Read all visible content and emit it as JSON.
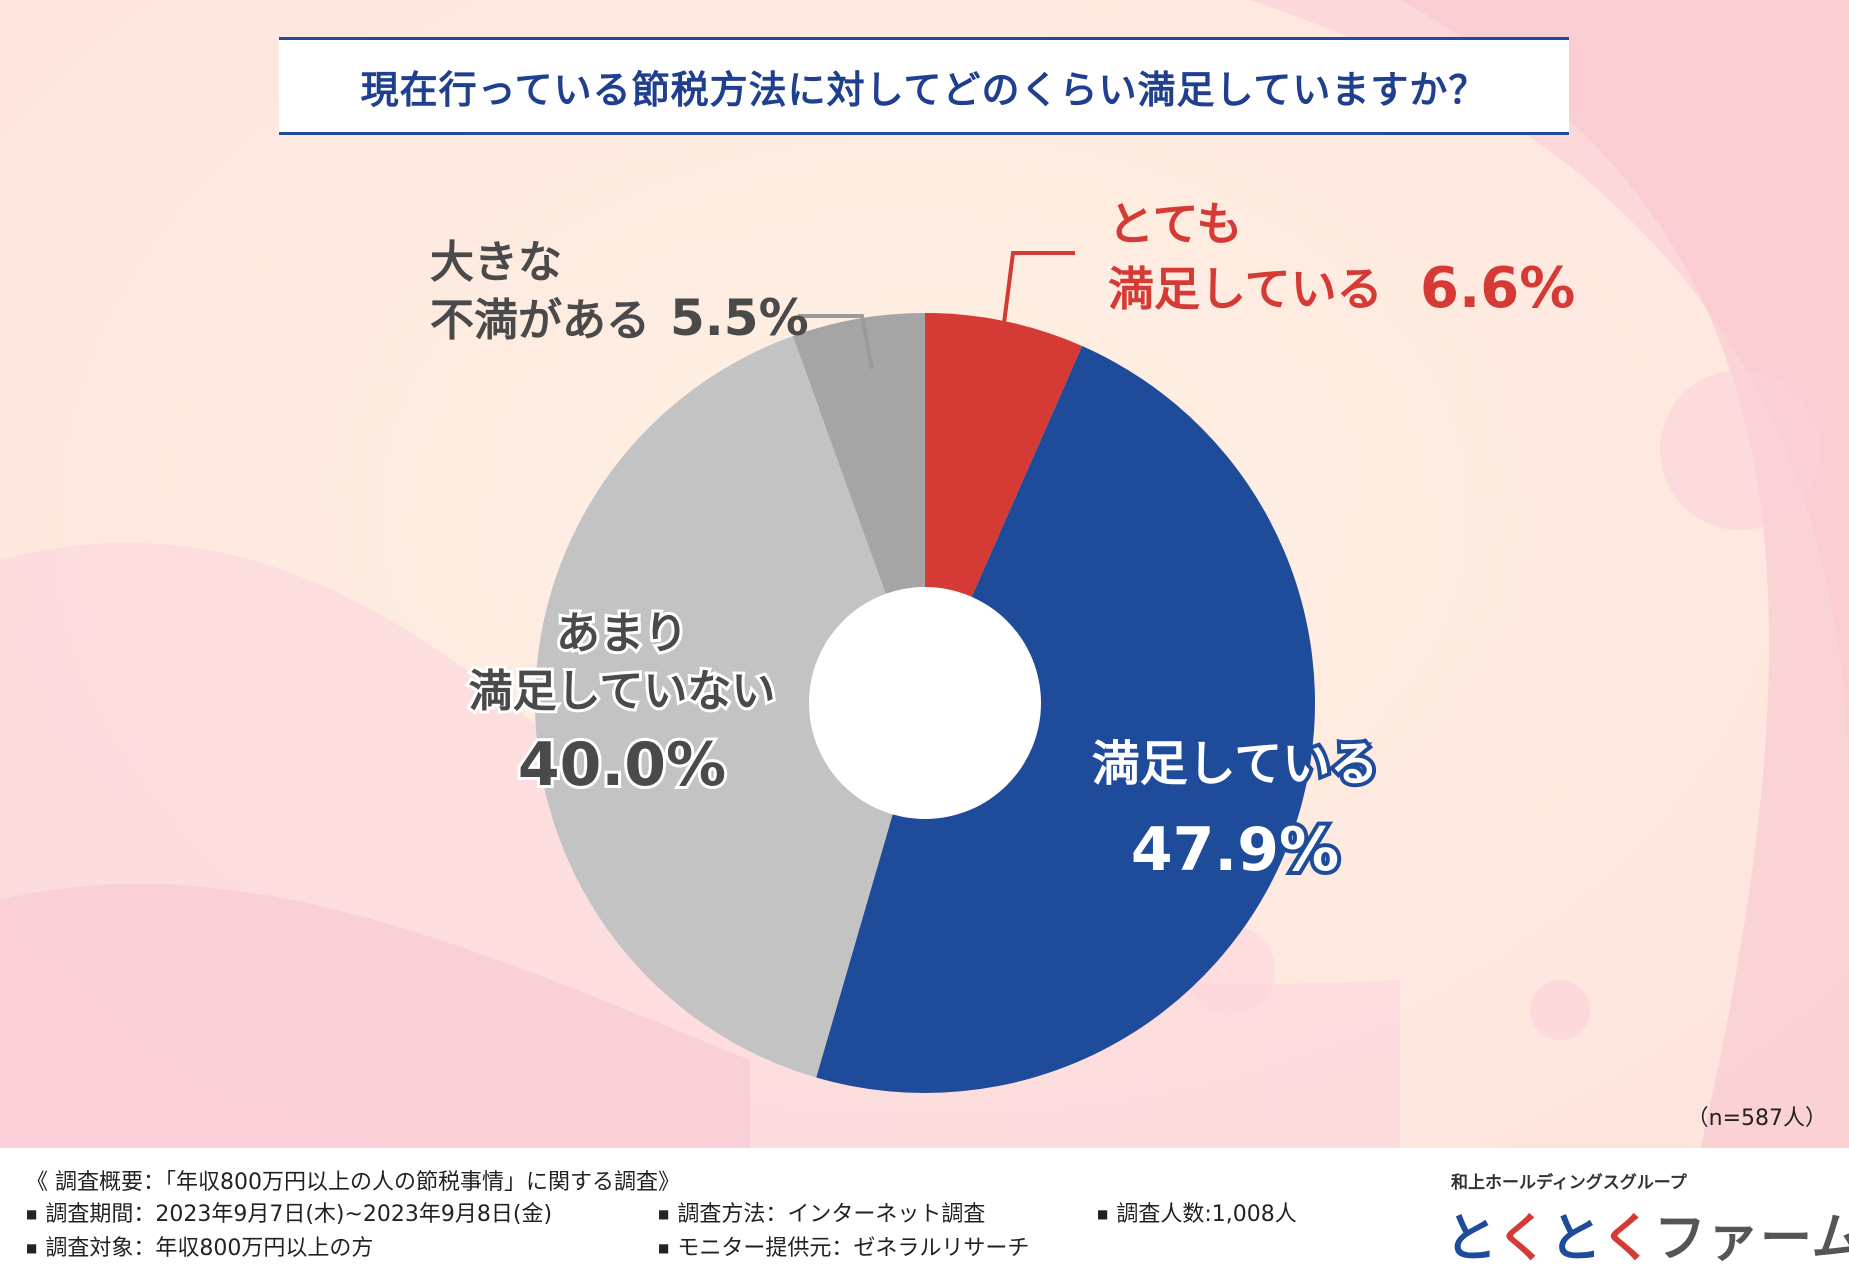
{
  "title": "現在行っている節税方法に対してどのくらい満足していますか？",
  "sample_note": "（n=587人）",
  "colors": {
    "very_satisfied": "#d63a34",
    "satisfied": "#1f4b9b",
    "not_very_satisfied": "#c3c3c3",
    "very_dissatisfied": "#a5a5a5",
    "title_text": "#1f3f8f"
  },
  "chart_data": {
    "type": "pie",
    "title": "現在行っている節税方法に対してどのくらい満足していますか？",
    "donut": true,
    "start_angle": "12 o'clock, clockwise",
    "slices": [
      {
        "name": "とても満足している",
        "value": 6.6,
        "color": "#d63a34",
        "label_lines": [
          "とても",
          "満足している"
        ],
        "value_text": "6.6%"
      },
      {
        "name": "満足している",
        "value": 47.9,
        "color": "#1f4b9b",
        "label_lines": [
          "満足している"
        ],
        "value_text": "47.9%"
      },
      {
        "name": "あまり満足していない",
        "value": 40.0,
        "color": "#c3c3c3",
        "label_lines": [
          "あまり",
          "満足していない"
        ],
        "value_text": "40.0%"
      },
      {
        "name": "大きな不満がある",
        "value": 5.5,
        "color": "#a5a5a5",
        "label_lines": [
          "大きな",
          "不満がある"
        ],
        "value_text": "5.5%"
      }
    ]
  },
  "footer": {
    "heading": "《 調査概要：「年収800万円以上の人の節税事情」に関する調査》",
    "period": "調査期間：2023年9月7日(木)~2023年9月8日(金)",
    "method": "調査方法：インターネット調査",
    "respondents": "調査人数:1,008人",
    "target": "調査対象：年収800万円以上の方",
    "provider": "モニター提供元：ゼネラルリサーチ"
  },
  "brand": {
    "group": "和上ホールディングスグループ",
    "logo_to1": "と",
    "logo_ku1": "く",
    "logo_to2": "と",
    "logo_ku2": "く",
    "logo_farm": "ファーム"
  }
}
